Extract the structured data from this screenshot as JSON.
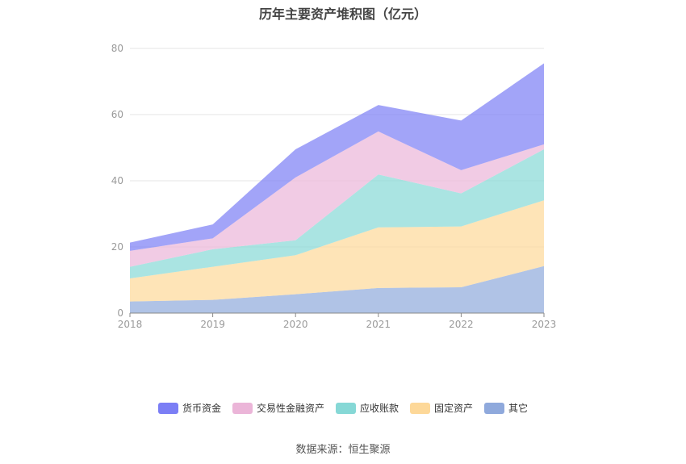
{
  "chart_data": {
    "type": "area",
    "stacked": true,
    "title": "历年主要资产堆积图（亿元）",
    "x": [
      "2018",
      "2019",
      "2020",
      "2021",
      "2022",
      "2023"
    ],
    "ylim": [
      0,
      80
    ],
    "yticks": [
      "0",
      "20",
      "40",
      "60",
      "80"
    ],
    "grid": true,
    "legend_position": "bottom",
    "series": [
      {
        "name": "其它",
        "color": "#8fa9dc",
        "values": [
          3.5,
          4.0,
          5.7,
          7.6,
          7.8,
          14.2
        ]
      },
      {
        "name": "固定资产",
        "color": "#fdd899",
        "values": [
          7.0,
          10.0,
          11.8,
          18.3,
          18.4,
          19.9
        ]
      },
      {
        "name": "应收账款",
        "color": "#86d8d6",
        "values": [
          3.5,
          5.3,
          4.5,
          16.0,
          10.0,
          15.4
        ]
      },
      {
        "name": "交易性金融资产",
        "color": "#ebb5d8",
        "values": [
          4.8,
          3.3,
          19.0,
          13.0,
          7.0,
          1.5
        ]
      },
      {
        "name": "货币资金",
        "color": "#7b7ef5",
        "values": [
          2.5,
          4.2,
          8.5,
          8.0,
          15.0,
          24.5
        ]
      }
    ]
  },
  "footer": {
    "source": "数据来源：恒生聚源"
  }
}
